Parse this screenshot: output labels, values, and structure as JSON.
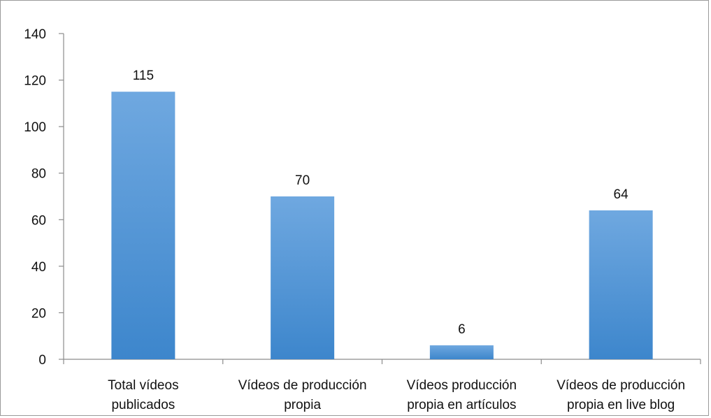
{
  "chart_data": {
    "type": "bar",
    "categories": [
      [
        "Total vídeos",
        "publicados"
      ],
      [
        "Vídeos de producción",
        "propia"
      ],
      [
        "Vídeos producción",
        "propia en artículos"
      ],
      [
        "Vídeos de producción",
        "propia en live blog"
      ]
    ],
    "values": [
      115,
      70,
      6,
      64
    ],
    "data_labels": [
      "115",
      "70",
      "6",
      "64"
    ],
    "ylim": [
      0,
      140
    ],
    "yticks": [
      "0",
      "20",
      "40",
      "60",
      "80",
      "100",
      "120",
      "140"
    ],
    "grid": false,
    "legend": "none",
    "colors": {
      "bar_top": "#6fa8e0",
      "bar_bottom": "#3d86cc",
      "axis": "#8c8c8c"
    }
  }
}
